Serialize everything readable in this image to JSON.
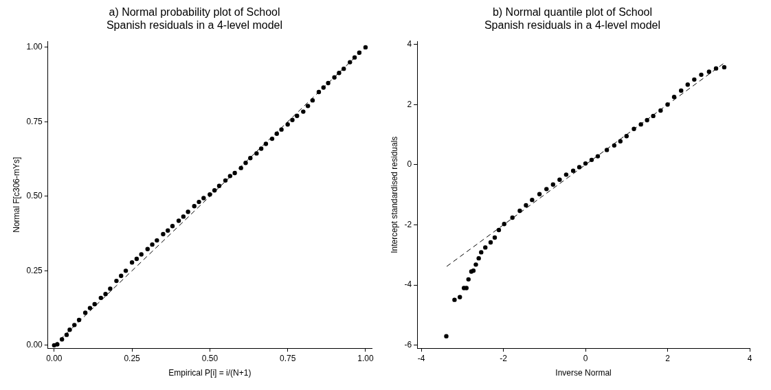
{
  "chart_data": [
    {
      "type": "scatter",
      "title": "a) Normal probability plot of School Spanish residuals in a 4-level model",
      "xlabel": "Empirical P[i] = i/(N+1)",
      "ylabel": "Normal F[c306-mYs]",
      "xlim": [
        -0.02,
        1.02
      ],
      "ylim": [
        -0.01,
        1.02
      ],
      "xticks": [
        {
          "value": 0,
          "label": "0.00"
        },
        {
          "value": 0.25,
          "label": "0.25"
        },
        {
          "value": 0.5,
          "label": "0.50"
        },
        {
          "value": 0.75,
          "label": "0.75"
        },
        {
          "value": 1,
          "label": "1.00"
        }
      ],
      "yticks": [
        {
          "value": 0,
          "label": "0.00"
        },
        {
          "value": 0.25,
          "label": "0.25"
        },
        {
          "value": 0.5,
          "label": "0.50"
        },
        {
          "value": 0.75,
          "label": "0.75"
        },
        {
          "value": 1,
          "label": "1.00"
        }
      ],
      "series": [
        {
          "marker": "circle",
          "color": "#000000",
          "x": [
            0,
            0.01,
            0.025,
            0.04,
            0.05,
            0.065,
            0.08,
            0.1,
            0.115,
            0.13,
            0.15,
            0.165,
            0.18,
            0.2,
            0.215,
            0.23,
            0.25,
            0.265,
            0.28,
            0.3,
            0.315,
            0.33,
            0.35,
            0.365,
            0.38,
            0.4,
            0.415,
            0.43,
            0.45,
            0.465,
            0.48,
            0.5,
            0.515,
            0.53,
            0.55,
            0.565,
            0.58,
            0.6,
            0.615,
            0.63,
            0.65,
            0.665,
            0.68,
            0.7,
            0.715,
            0.73,
            0.75,
            0.765,
            0.78,
            0.8,
            0.815,
            0.83,
            0.85,
            0.865,
            0.88,
            0.9,
            0.915,
            0.93,
            0.95,
            0.965,
            0.98,
            1
          ],
          "values": [
            0,
            0.003,
            0.02,
            0.035,
            0.052,
            0.068,
            0.085,
            0.109,
            0.125,
            0.138,
            0.159,
            0.172,
            0.19,
            0.216,
            0.233,
            0.25,
            0.278,
            0.29,
            0.305,
            0.323,
            0.338,
            0.352,
            0.373,
            0.385,
            0.4,
            0.418,
            0.432,
            0.448,
            0.467,
            0.481,
            0.494,
            0.506,
            0.52,
            0.535,
            0.553,
            0.568,
            0.578,
            0.595,
            0.612,
            0.628,
            0.644,
            0.66,
            0.676,
            0.693,
            0.71,
            0.724,
            0.741,
            0.756,
            0.77,
            0.784,
            0.803,
            0.822,
            0.85,
            0.865,
            0.88,
            0.899,
            0.914,
            0.928,
            0.95,
            0.966,
            0.982,
            1
          ]
        },
        {
          "type": "line",
          "marker": "none",
          "color": "#000000",
          "line_style": "dashed",
          "x": [
            0,
            1
          ],
          "values": [
            0,
            1
          ]
        }
      ]
    },
    {
      "type": "scatter",
      "title": "b) Normal quantile plot of School Spanish residuals in a 4-level model",
      "xlabel": "Inverse Normal",
      "ylabel": "Intercept standardised residuals",
      "xlim": [
        -4.1,
        4
      ],
      "ylim": [
        -6.1,
        4.1
      ],
      "xticks": [
        -4,
        -2,
        0,
        2,
        4
      ],
      "yticks": [
        -6,
        -4,
        -2,
        0,
        2,
        4
      ],
      "series": [
        {
          "marker": "circle",
          "color": "#000000",
          "x": [
            -3.39,
            -3.19,
            -3.06,
            -2.96,
            -2.9,
            -2.85,
            -2.78,
            -2.73,
            -2.67,
            -2.6,
            -2.54,
            -2.44,
            -2.31,
            -2.21,
            -2.11,
            -1.98,
            -1.78,
            -1.6,
            -1.45,
            -1.3,
            -1.12,
            -0.95,
            -0.79,
            -0.63,
            -0.47,
            -0.3,
            -0.15,
            0,
            0.15,
            0.3,
            0.52,
            0.7,
            0.85,
            1.0,
            1.18,
            1.35,
            1.5,
            1.65,
            1.83,
            2.0,
            2.16,
            2.33,
            2.49,
            2.65,
            2.82,
            3.01,
            3.18,
            3.38
          ],
          "values": [
            -5.7,
            -4.49,
            -4.4,
            -4.1,
            -4.1,
            -3.81,
            -3.55,
            -3.52,
            -3.32,
            -3.11,
            -2.91,
            -2.75,
            -2.58,
            -2.42,
            -2.17,
            -1.97,
            -1.76,
            -1.53,
            -1.35,
            -1.17,
            -0.98,
            -0.81,
            -0.66,
            -0.5,
            -0.33,
            -0.2,
            -0.08,
            0.04,
            0.16,
            0.28,
            0.49,
            0.64,
            0.78,
            0.95,
            1.19,
            1.34,
            1.48,
            1.62,
            1.8,
            2.0,
            2.25,
            2.46,
            2.66,
            2.83,
            2.99,
            3.09,
            3.2,
            3.24
          ]
        },
        {
          "type": "line",
          "marker": "none",
          "color": "#000000",
          "line_style": "dashed",
          "x": [
            -3.38,
            3.38
          ],
          "values": [
            -3.38,
            3.38
          ]
        }
      ]
    }
  ]
}
